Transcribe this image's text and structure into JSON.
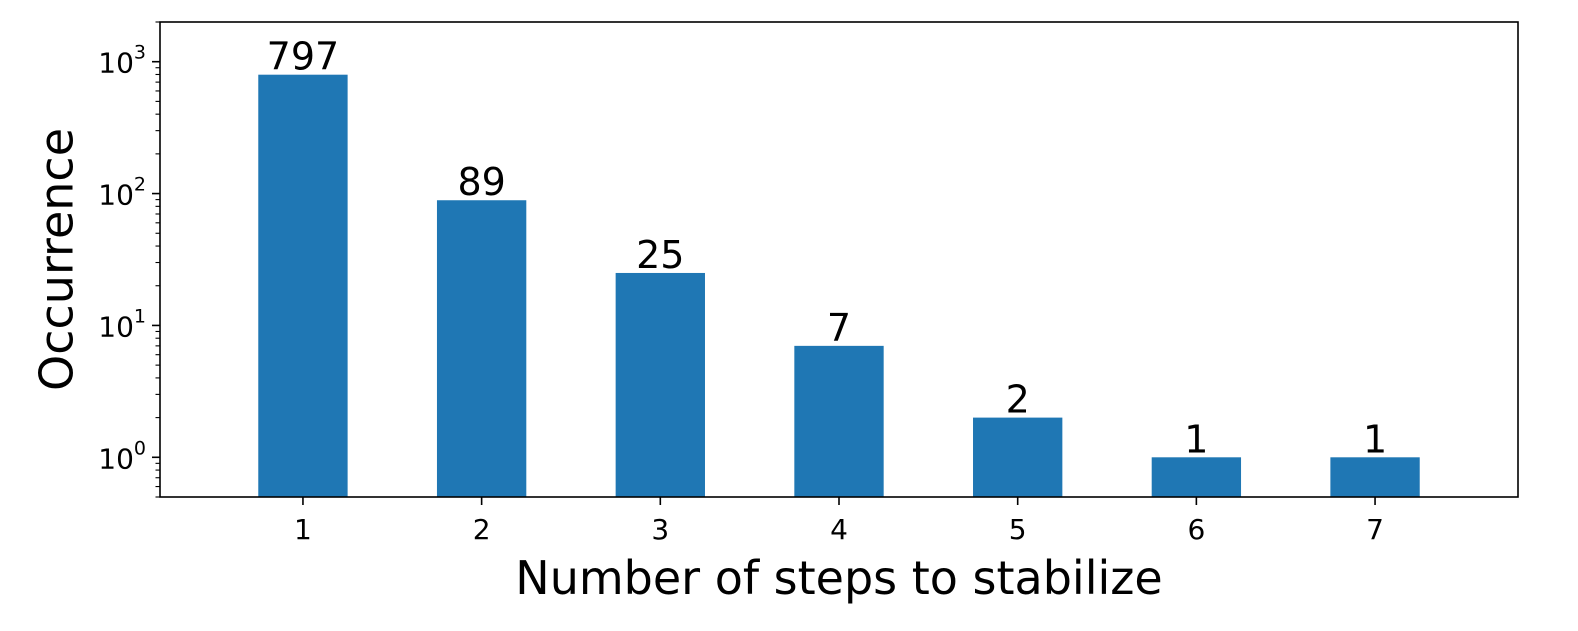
{
  "chart_data": {
    "type": "bar",
    "categories": [
      "1",
      "2",
      "3",
      "4",
      "5",
      "6",
      "7"
    ],
    "values": [
      797,
      89,
      25,
      7,
      2,
      1,
      1
    ],
    "data_labels": [
      "797",
      "89",
      "25",
      "7",
      "2",
      "1",
      "1"
    ],
    "title": "",
    "xlabel": "Number of steps to stabilize",
    "ylabel": "Occurrence",
    "yscale": "log",
    "ylim": [
      0.5,
      2000
    ],
    "y_ticks": [
      {
        "base": "10",
        "exp": "0",
        "value": 1
      },
      {
        "base": "10",
        "exp": "1",
        "value": 10
      },
      {
        "base": "10",
        "exp": "2",
        "value": 100
      },
      {
        "base": "10",
        "exp": "3",
        "value": 1000
      }
    ],
    "grid": false,
    "legend": "none",
    "bar_color": "#1f77b4"
  }
}
